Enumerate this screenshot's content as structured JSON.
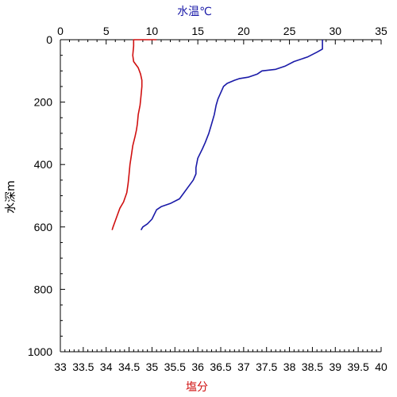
{
  "chart_data": {
    "type": "line",
    "title": "",
    "y_axis": {
      "label": "水深m",
      "range": [
        0,
        1000
      ],
      "inverted": true,
      "ticks": [
        0,
        200,
        400,
        600,
        800,
        1000
      ]
    },
    "x_axis_top": {
      "label": "水温℃",
      "label_color": "#1a1aa8",
      "range": [
        0,
        35
      ],
      "ticks": [
        0,
        5,
        10,
        15,
        20,
        25,
        30,
        35
      ]
    },
    "x_axis_bottom": {
      "label": "塩分",
      "label_color": "#d01010",
      "range": [
        33,
        40
      ],
      "ticks": [
        "33",
        "33.5",
        "34",
        "34.5",
        "35",
        "35.5",
        "36",
        "36.5",
        "37",
        "37.5",
        "38",
        "38.5",
        "39",
        "39.5",
        "40"
      ]
    },
    "grid": false,
    "legend": "none",
    "series": [
      {
        "axis": "top",
        "color": "#1a1aa8",
        "points": [
          [
            28.6,
            0
          ],
          [
            28.6,
            30
          ],
          [
            28.0,
            40
          ],
          [
            27.0,
            55
          ],
          [
            25.5,
            70
          ],
          [
            24.5,
            85
          ],
          [
            23.5,
            95
          ],
          [
            22.0,
            100
          ],
          [
            21.5,
            110
          ],
          [
            20.5,
            120
          ],
          [
            19.5,
            125
          ],
          [
            19.0,
            130
          ],
          [
            18.2,
            140
          ],
          [
            17.8,
            150
          ],
          [
            17.5,
            170
          ],
          [
            17.2,
            190
          ],
          [
            17.0,
            210
          ],
          [
            16.8,
            240
          ],
          [
            16.5,
            270
          ],
          [
            16.2,
            300
          ],
          [
            15.8,
            330
          ],
          [
            15.5,
            350
          ],
          [
            15.0,
            380
          ],
          [
            14.8,
            410
          ],
          [
            14.8,
            430
          ],
          [
            14.5,
            450
          ],
          [
            14.0,
            470
          ],
          [
            13.5,
            490
          ],
          [
            13.0,
            510
          ],
          [
            12.0,
            525
          ],
          [
            11.0,
            535
          ],
          [
            10.5,
            545
          ],
          [
            10.0,
            575
          ],
          [
            9.5,
            590
          ],
          [
            9.0,
            600
          ],
          [
            8.8,
            610
          ]
        ]
      },
      {
        "axis": "bottom",
        "color": "#d01010",
        "points": [
          [
            35.1,
            0
          ],
          [
            34.6,
            0
          ],
          [
            34.6,
            20
          ],
          [
            34.58,
            50
          ],
          [
            34.6,
            70
          ],
          [
            34.7,
            90
          ],
          [
            34.75,
            110
          ],
          [
            34.78,
            130
          ],
          [
            34.78,
            150
          ],
          [
            34.76,
            180
          ],
          [
            34.74,
            210
          ],
          [
            34.7,
            240
          ],
          [
            34.68,
            270
          ],
          [
            34.66,
            290
          ],
          [
            34.63,
            310
          ],
          [
            34.58,
            340
          ],
          [
            34.55,
            370
          ],
          [
            34.52,
            400
          ],
          [
            34.5,
            430
          ],
          [
            34.48,
            460
          ],
          [
            34.45,
            490
          ],
          [
            34.38,
            520
          ],
          [
            34.3,
            540
          ],
          [
            34.25,
            560
          ],
          [
            34.2,
            580
          ],
          [
            34.15,
            600
          ],
          [
            34.13,
            610
          ]
        ]
      }
    ]
  }
}
